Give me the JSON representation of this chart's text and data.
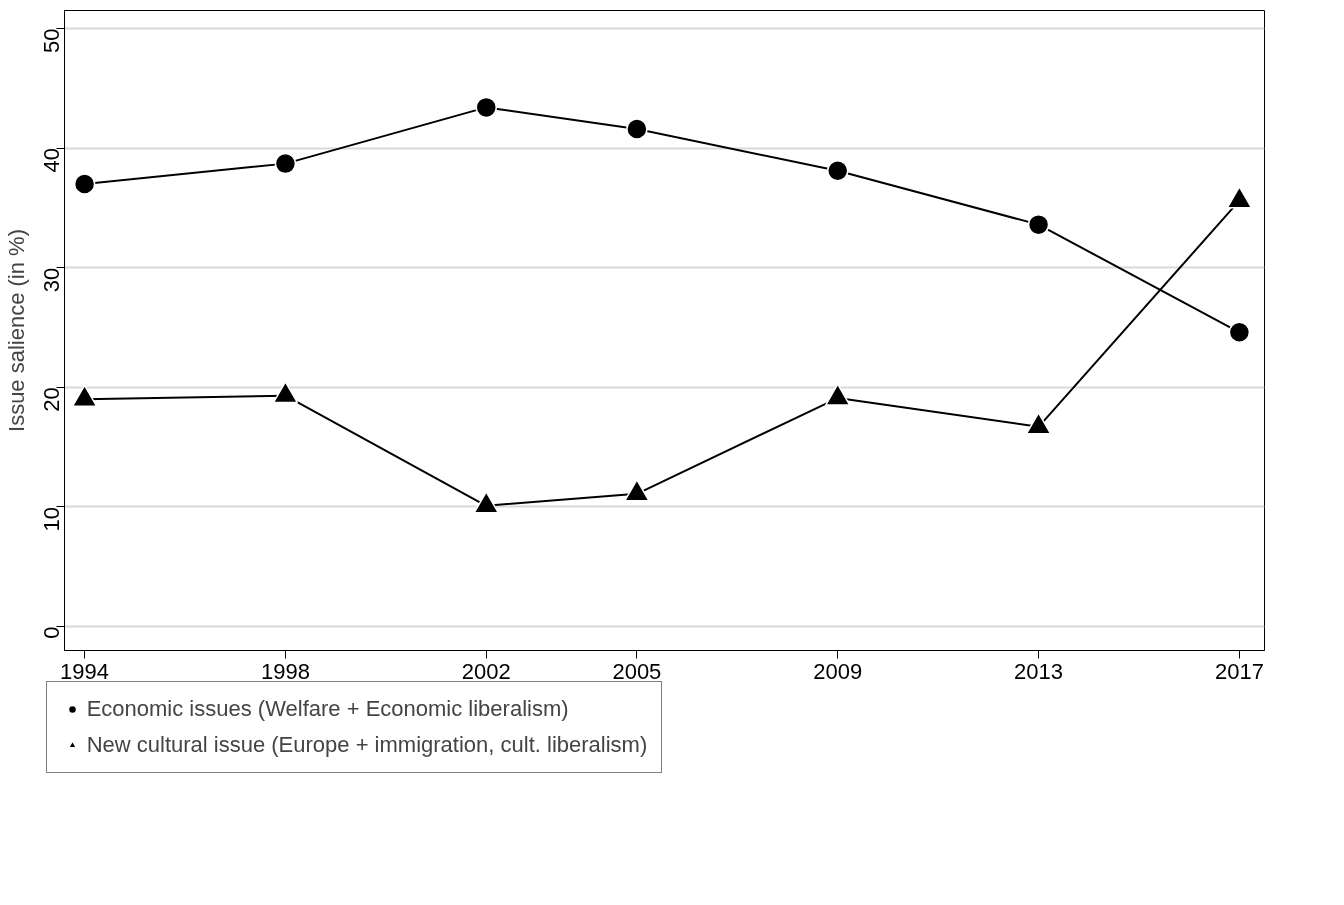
{
  "chart_data": {
    "type": "line",
    "ylabel": "Issue salience (in %)",
    "x": [
      1994,
      1998,
      2002,
      2005,
      2009,
      2013,
      2017
    ],
    "xlim": [
      1993.6,
      2017.5
    ],
    "xticks": [
      1994,
      1998,
      2002,
      2005,
      2009,
      2013,
      2017
    ],
    "ylim": [
      -2,
      51.5
    ],
    "yticks": [
      0,
      10,
      20,
      30,
      40,
      50
    ],
    "grid": "y",
    "legend": "bottom",
    "series": [
      {
        "name": "Economic issues (Welfare + Economic liberalism)",
        "color": "#000000",
        "marker": "circle",
        "values": [
          37.0,
          38.7,
          43.4,
          41.6,
          38.1,
          33.6,
          24.6
        ]
      },
      {
        "name": "New cultural issue (Europe + immigration, cult. liberalism)",
        "color": "#000000",
        "marker": "triangle",
        "values": [
          19.0,
          19.3,
          10.1,
          11.1,
          19.1,
          16.7,
          35.6
        ]
      }
    ]
  }
}
